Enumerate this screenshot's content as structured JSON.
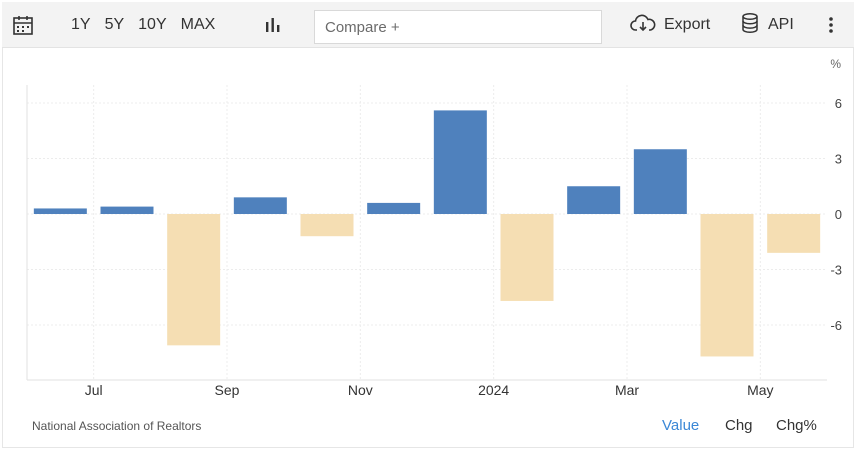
{
  "toolbar": {
    "range_buttons": [
      "1Y",
      "5Y",
      "10Y",
      "MAX"
    ],
    "compare_placeholder": "Compare +",
    "export_label": "Export",
    "api_label": "API",
    "icons": [
      "calendar-icon",
      "bar-chart-icon",
      "cloud-download-icon",
      "database-icon",
      "kebab-menu-icon"
    ]
  },
  "footer": {
    "source": "National Association of Realtors",
    "tabs": [
      "Value",
      "Chg",
      "Chg%"
    ],
    "active_tab": "Value"
  },
  "colors": {
    "positive": "#4f81bd",
    "negative": "#f5deb3",
    "active_tab": "#3a87d6"
  },
  "chart_data": {
    "type": "bar",
    "categories": [
      "2023-06",
      "2023-07",
      "2023-08",
      "2023-09",
      "2023-10",
      "2023-11",
      "2023-12",
      "2024-01",
      "2024-02",
      "2024-03",
      "2024-04",
      "2024-05"
    ],
    "values": [
      0.3,
      0.4,
      -7.1,
      0.9,
      -1.2,
      0.6,
      5.6,
      -4.7,
      1.5,
      3.5,
      -7.7,
      -2.1
    ],
    "ylabel": "%",
    "yticks": [
      6,
      3,
      0,
      -3,
      -6
    ],
    "ylim": [
      -9,
      7
    ],
    "xtick_labels": [
      {
        "label": "Jul",
        "between": [
          "2023-06",
          "2023-07"
        ]
      },
      {
        "label": "Sep",
        "between": [
          "2023-08",
          "2023-09"
        ]
      },
      {
        "label": "Nov",
        "between": [
          "2023-10",
          "2023-11"
        ]
      },
      {
        "label": "2024",
        "between": [
          "2023-12",
          "2024-01"
        ]
      },
      {
        "label": "Mar",
        "between": [
          "2024-02",
          "2024-03"
        ]
      },
      {
        "label": "May",
        "between": [
          "2024-04",
          "2024-05"
        ]
      }
    ],
    "grid": true,
    "y_axis_side": "right"
  }
}
